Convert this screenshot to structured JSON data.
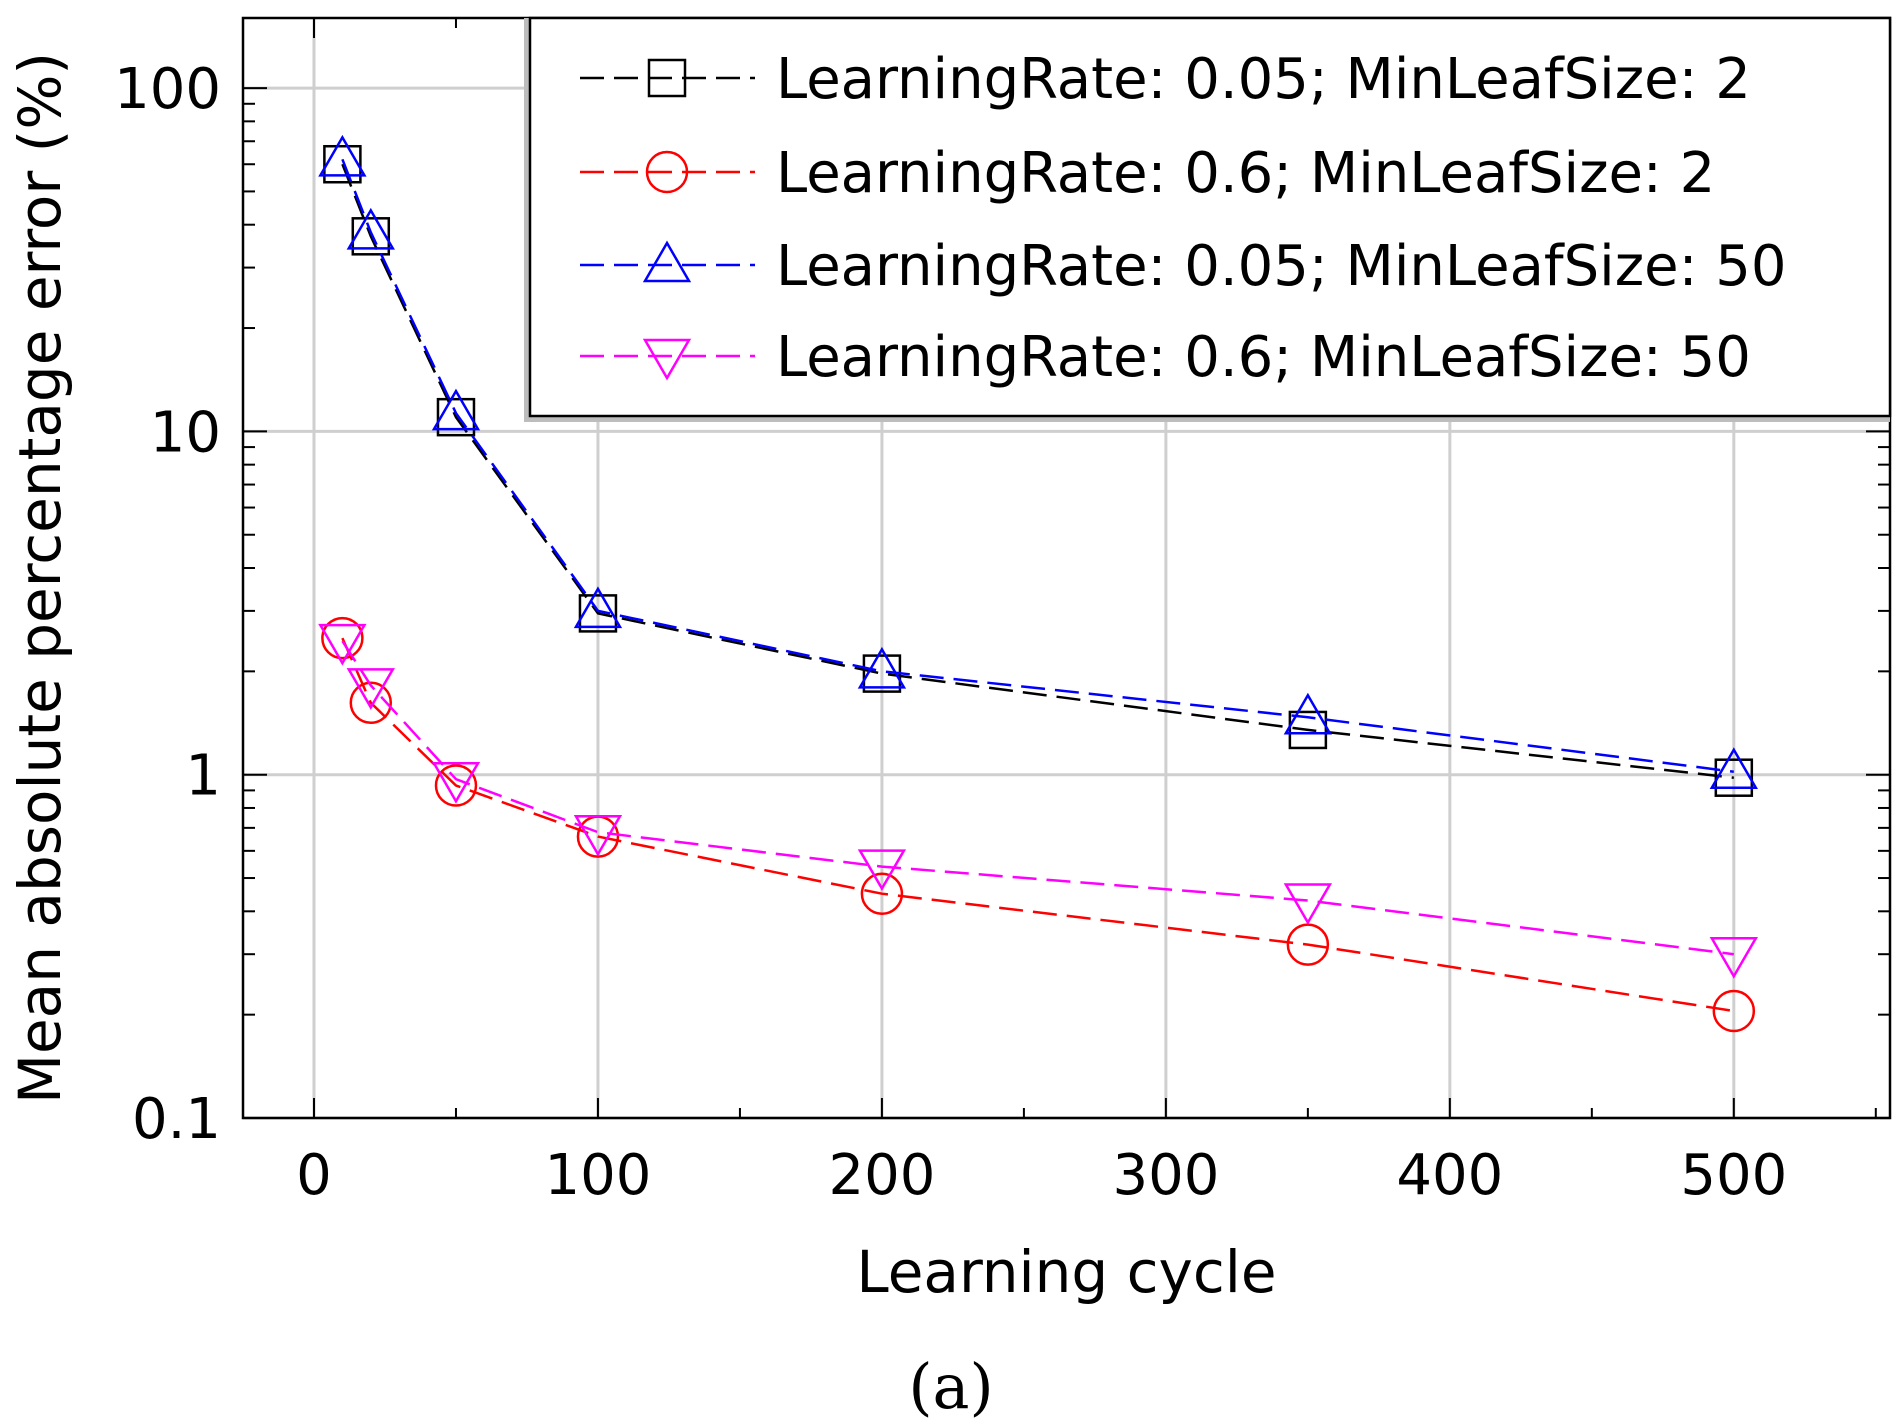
{
  "chart_data": {
    "type": "line",
    "title": "",
    "xlabel": "Learning cycle",
    "ylabel": "Mean absolute percentage error (%)",
    "yscale": "log",
    "xlim": [
      -25,
      555
    ],
    "ylim": [
      0.1,
      160
    ],
    "xticks": [
      0,
      100,
      200,
      300,
      400,
      500
    ],
    "xtick_labels": [
      "0",
      "100",
      "200",
      "300",
      "400",
      "500"
    ],
    "yticks": [
      0.1,
      1,
      10,
      100
    ],
    "ytick_labels": [
      "0.1",
      "1",
      "10",
      "100"
    ],
    "grid": true,
    "legend_position": "top-right",
    "caption": "(a)",
    "series": [
      {
        "name": "LearningRate: 0.05; MinLeafSize: 2",
        "color": "#000000",
        "marker": "square",
        "x": [
          10,
          20,
          50,
          100,
          200,
          350,
          500
        ],
        "y": [
          60,
          37,
          11,
          2.95,
          1.97,
          1.35,
          0.98
        ]
      },
      {
        "name": "LearningRate: 0.6; MinLeafSize: 2",
        "color": "#ff0000",
        "marker": "circle",
        "x": [
          10,
          20,
          50,
          100,
          200,
          350,
          500
        ],
        "y": [
          2.5,
          1.62,
          0.93,
          0.66,
          0.45,
          0.32,
          0.205
        ]
      },
      {
        "name": "LearningRate: 0.05; MinLeafSize: 50",
        "color": "#0000ff",
        "marker": "triangle-up",
        "x": [
          10,
          20,
          50,
          100,
          200,
          350,
          500
        ],
        "y": [
          62,
          38,
          11.3,
          3.0,
          2.0,
          1.47,
          1.02
        ]
      },
      {
        "name": "LearningRate: 0.6; MinLeafSize: 50",
        "color": "#ff00ff",
        "marker": "triangle-down",
        "x": [
          10,
          20,
          50,
          100,
          200,
          350,
          500
        ],
        "y": [
          2.45,
          1.82,
          0.97,
          0.68,
          0.54,
          0.43,
          0.3
        ]
      }
    ]
  }
}
